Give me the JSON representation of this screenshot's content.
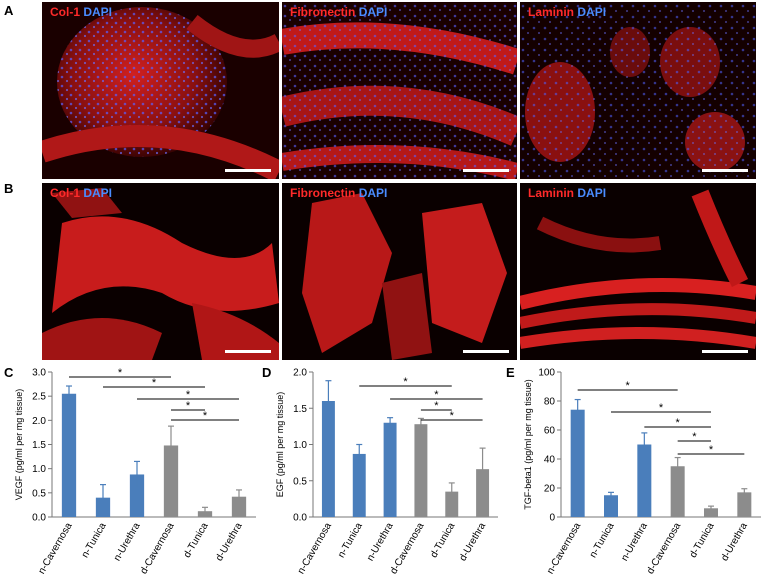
{
  "panel_labels": [
    "A",
    "B",
    "C",
    "D",
    "E"
  ],
  "stains": {
    "col1": {
      "marker": "Col-1",
      "dapi": "DAPI"
    },
    "fibronectin": {
      "marker": "Fibronectin",
      "dapi": "DAPI"
    },
    "laminin": {
      "marker": "Laminin",
      "dapi": "DAPI"
    }
  },
  "colors": {
    "native": "#4a7ebb",
    "decell": "#8c8c8c",
    "marker": "#ff2a2a",
    "dapi": "#4a8cff"
  },
  "chart_data": [
    {
      "type": "bar",
      "ylabel": "VEGF (pg/ml per mg tissue)",
      "categories": [
        "n-Cavernosa",
        "n-Tunica",
        "n-Urethra",
        "d-Cavernosa",
        "d-Tunica",
        "d-Urethra"
      ],
      "values": [
        2.55,
        0.4,
        0.88,
        1.48,
        0.12,
        0.42
      ],
      "errors": [
        0.16,
        0.27,
        0.27,
        0.4,
        0.08,
        0.14
      ],
      "ylim": [
        0,
        3.0
      ],
      "yticks": [
        "0.0",
        "0.5",
        "1.0",
        "1.5",
        "2.0",
        "2.5",
        "3.0"
      ],
      "significance": [
        [
          0,
          3
        ],
        [
          1,
          4
        ],
        [
          2,
          5
        ],
        [
          3,
          4
        ],
        [
          3,
          5
        ]
      ],
      "sig_mark": "*"
    },
    {
      "type": "bar",
      "ylabel": "EGF (pg/ml per mg tissue)",
      "categories": [
        "n-Cavernosa",
        "n-Tunica",
        "n-Urethra",
        "d-Cavernosa",
        "d-Tunica",
        "d-Urethra"
      ],
      "values": [
        1.6,
        0.87,
        1.3,
        1.28,
        0.35,
        0.66
      ],
      "errors": [
        0.28,
        0.13,
        0.07,
        0.08,
        0.12,
        0.29
      ],
      "ylim": [
        0,
        2.0
      ],
      "yticks": [
        "0.0",
        "0.5",
        "1.0",
        "1.5",
        "2.0"
      ],
      "significance": [
        [
          1,
          4
        ],
        [
          2,
          5
        ],
        [
          3,
          4
        ],
        [
          3,
          5
        ]
      ],
      "sig_mark": "*"
    },
    {
      "type": "bar",
      "ylabel": "TGF-beta1 (pg/ml per mg tissue)",
      "categories": [
        "n-Cavernosa",
        "n-Tunica",
        "n-Urethra",
        "d-Cavernosa",
        "d-Tunica",
        "d-Urethra"
      ],
      "values": [
        74,
        15,
        50,
        35,
        6,
        17
      ],
      "errors": [
        7,
        2,
        8,
        6,
        1.5,
        2.5
      ],
      "ylim": [
        0,
        100
      ],
      "yticks": [
        "0",
        "20",
        "40",
        "60",
        "80",
        "100"
      ],
      "significance": [
        [
          0,
          3
        ],
        [
          1,
          4
        ],
        [
          2,
          4
        ],
        [
          3,
          4
        ],
        [
          3,
          5
        ]
      ],
      "sig_mark": "*"
    }
  ]
}
